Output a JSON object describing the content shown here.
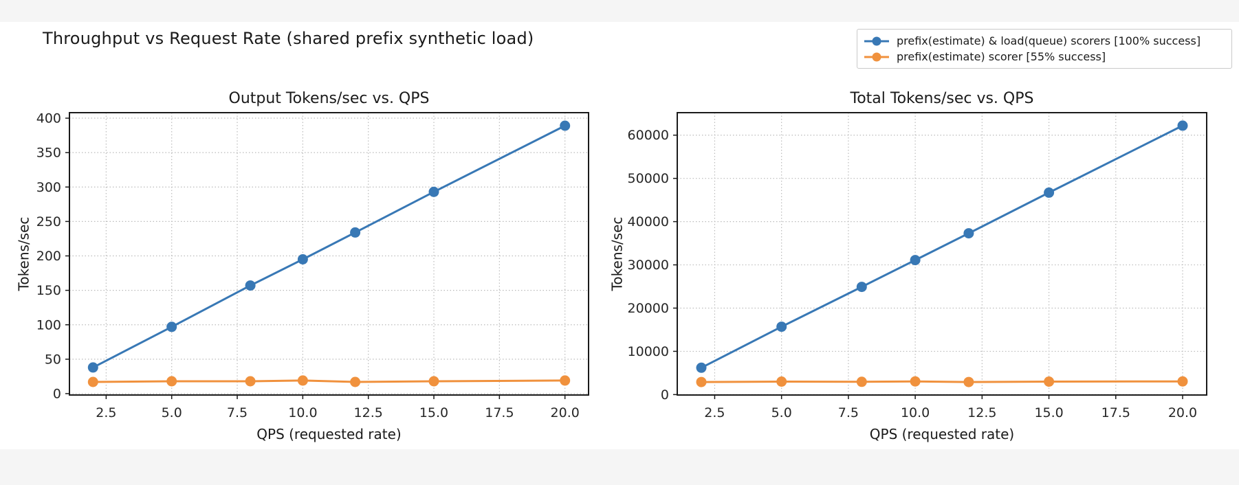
{
  "figure": {
    "title": "Throughput vs Request Rate (shared prefix synthetic load)"
  },
  "legend": {
    "position": "top-right",
    "entries": [
      {
        "label": "prefix(estimate) & load(queue) scorers [100% success]",
        "color": "#3878b5",
        "marker": "line-with-circle"
      },
      {
        "label": "prefix(estimate) scorer [55% success]",
        "color": "#f0913d",
        "marker": "line-with-circle"
      }
    ]
  },
  "colors": {
    "series_blue": "#3878b5",
    "series_orange": "#f0913d",
    "grid": "#bababa",
    "axis": "#1a1a1a",
    "tick_text": "#262626",
    "background_strip": "#f5f5f5",
    "figure_background": "#ffffff"
  },
  "chart_data": [
    {
      "type": "line",
      "title": "Output Tokens/sec vs. QPS",
      "xlabel": "QPS (requested rate)",
      "ylabel": "Tokens/sec",
      "x": [
        2,
        5,
        8,
        10,
        12,
        15,
        20
      ],
      "series": [
        {
          "name": "prefix(estimate) & load(queue) scorers [100% success]",
          "color": "#3878b5",
          "values": [
            38,
            97,
            157,
            195,
            234,
            293,
            389
          ]
        },
        {
          "name": "prefix(estimate) scorer [55% success]",
          "color": "#f0913d",
          "values": [
            17,
            18,
            18,
            19,
            17,
            18,
            19
          ]
        }
      ],
      "xlim": [
        1.1,
        20.9
      ],
      "ylim": [
        -2,
        408
      ],
      "xtick_values": [
        2.5,
        5.0,
        7.5,
        10.0,
        12.5,
        15.0,
        17.5,
        20.0
      ],
      "xtick_labels": [
        "2.5",
        "5.0",
        "7.5",
        "10.0",
        "12.5",
        "15.0",
        "17.5",
        "20.0"
      ],
      "ytick_values": [
        0,
        50,
        100,
        150,
        200,
        250,
        300,
        350,
        400
      ],
      "ytick_labels": [
        "0",
        "50",
        "100",
        "150",
        "200",
        "250",
        "300",
        "350",
        "400"
      ],
      "grid": true,
      "grid_style": "dotted"
    },
    {
      "type": "line",
      "title": "Total Tokens/sec vs. QPS",
      "xlabel": "QPS (requested rate)",
      "ylabel": "Tokens/sec",
      "x": [
        2,
        5,
        8,
        10,
        12,
        15,
        20
      ],
      "series": [
        {
          "name": "prefix(estimate) & load(queue) scorers [100% success]",
          "color": "#3878b5",
          "values": [
            6200,
            15700,
            24900,
            31100,
            37300,
            46700,
            62200
          ]
        },
        {
          "name": "prefix(estimate) scorer [55% success]",
          "color": "#f0913d",
          "values": [
            2900,
            3000,
            2950,
            3050,
            2900,
            3000,
            3050
          ]
        }
      ],
      "xlim": [
        1.1,
        20.9
      ],
      "ylim": [
        -100,
        65200
      ],
      "xtick_values": [
        2.5,
        5.0,
        7.5,
        10.0,
        12.5,
        15.0,
        17.5,
        20.0
      ],
      "xtick_labels": [
        "2.5",
        "5.0",
        "7.5",
        "10.0",
        "12.5",
        "15.0",
        "17.5",
        "20.0"
      ],
      "ytick_values": [
        0,
        10000,
        20000,
        30000,
        40000,
        50000,
        60000
      ],
      "ytick_labels": [
        "0",
        "10000",
        "20000",
        "30000",
        "40000",
        "50000",
        "60000"
      ],
      "grid": true,
      "grid_style": "dotted"
    }
  ]
}
